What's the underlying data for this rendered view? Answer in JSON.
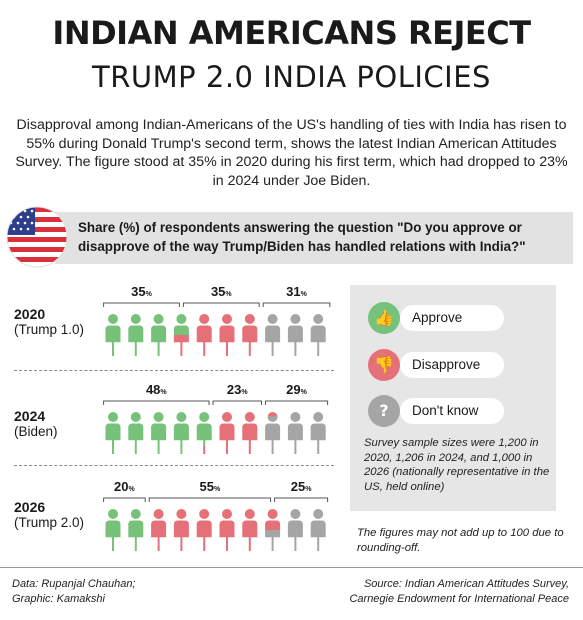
{
  "title_line1": "INDIAN AMERICANS REJECT",
  "title_line2": "TRUMP 2.0 INDIA POLICIES",
  "intro": "Disapproval among Indian-Americans of the US's handling of ties with India has risen to 55% during Donald Trump's second term, shows the latest Indian American Attitudes Survey. The figure stood at 35% in 2020 during his first term, which had dropped to 23% in 2024 under Joe Biden.",
  "question": "Share (%) of respondents answering the question \"Do you approve or disapprove of the way Trump/Biden has handled relations with India?\"",
  "colors": {
    "approve": "#76c27b",
    "disapprove": "#e57078",
    "dont_know": "#a5a5a5"
  },
  "rows": [
    {
      "year": "2020",
      "sub": "(Trump 1.0)",
      "labels": [
        "35",
        "35",
        "31"
      ]
    },
    {
      "year": "2024",
      "sub": "(Biden)",
      "labels": [
        "48",
        "23",
        "29"
      ]
    },
    {
      "year": "2026",
      "sub": "(Trump 2.0)",
      "labels": [
        "20",
        "55",
        "25"
      ]
    }
  ],
  "pct_suffix": "%",
  "chart_data": {
    "type": "bar",
    "categories": [
      "2020 (Trump 1.0)",
      "2024 (Biden)",
      "2026 (Trump 2.0)"
    ],
    "series": [
      {
        "name": "Approve",
        "values": [
          35,
          48,
          20
        ]
      },
      {
        "name": "Disapprove",
        "values": [
          35,
          23,
          55
        ]
      },
      {
        "name": "Don't know",
        "values": [
          31,
          29,
          25
        ]
      }
    ],
    "title": "INDIAN AMERICANS REJECT TRUMP 2.0 INDIA POLICIES",
    "ylim": [
      0,
      100
    ]
  },
  "legend": {
    "approve": "Approve",
    "disapprove": "Disapprove",
    "dont_know": "Don't know",
    "sample_note": "Survey sample sizes were 1,200 in 2020, 1,206 in 2024, and 1,000 in 2026 (nationally representative in the US, held online)",
    "rounding_note": "The figures may not add up to 100 due to rounding-off."
  },
  "footer": {
    "data_credit": "Data: Rupanjal Chauhan;",
    "graphic_credit": "Graphic: Kamakshi",
    "source_line1": "Source: Indian American Attitudes Survey,",
    "source_line2": "Carnegie Endowment for International Peace"
  }
}
